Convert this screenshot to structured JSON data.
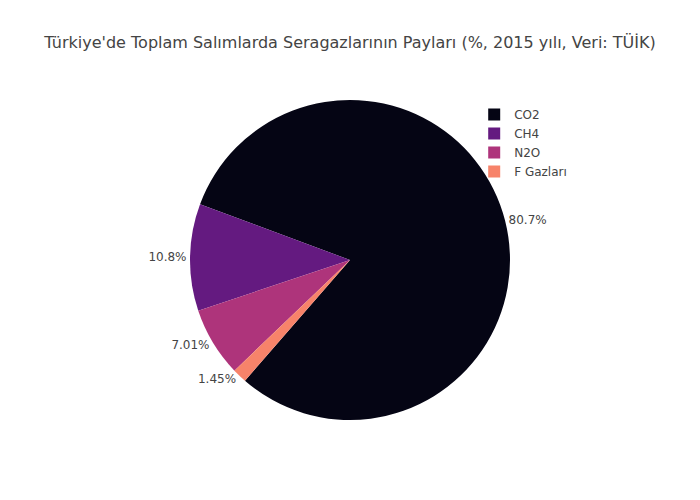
{
  "chart_data": {
    "type": "pie",
    "title": "Türkiye'de Toplam Salımlarda Seragazlarının Payları (%, 2015 yılı, Veri: TÜİK)",
    "categories": [
      "CO2",
      "CH4",
      "N2O",
      "F Gazları"
    ],
    "values": [
      80.7,
      10.8,
      7.01,
      1.45
    ],
    "value_labels": [
      "80.7%",
      "10.8%",
      "7.01%",
      "1.45%"
    ],
    "colors": [
      "#050514",
      "#641a80",
      "#ae347b",
      "#f7836a"
    ],
    "data_labels": true,
    "legend": "top right"
  }
}
